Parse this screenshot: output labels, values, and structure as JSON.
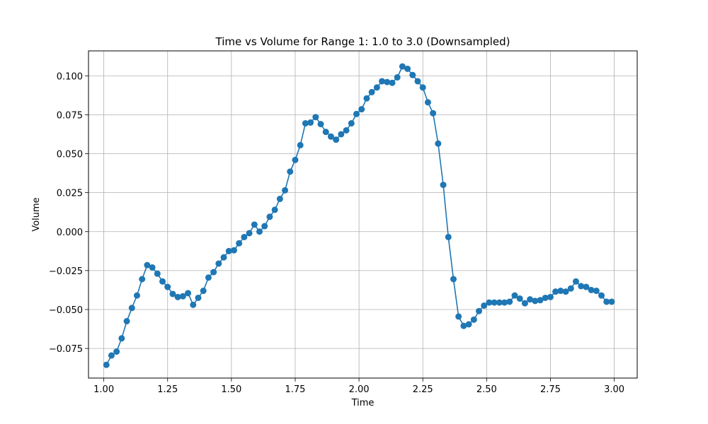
{
  "chart_data": {
    "type": "line",
    "title": "Time vs Volume for Range 1: 1.0 to 3.0 (Downsampled)",
    "xlabel": "Time",
    "ylabel": "Volume",
    "xlim": [
      0.94,
      3.09
    ],
    "ylim": [
      -0.094,
      0.116
    ],
    "x_ticks": [
      1.0,
      1.25,
      1.5,
      1.75,
      2.0,
      2.25,
      2.5,
      2.75,
      3.0
    ],
    "x_tick_labels": [
      "1.00",
      "1.25",
      "1.50",
      "1.75",
      "2.00",
      "2.25",
      "2.50",
      "2.75",
      "3.00"
    ],
    "y_ticks": [
      -0.075,
      -0.05,
      -0.025,
      0.0,
      0.025,
      0.05,
      0.075,
      0.1
    ],
    "y_tick_labels": [
      "−0.075",
      "−0.050",
      "−0.025",
      "0.000",
      "0.025",
      "0.050",
      "0.075",
      "0.100"
    ],
    "grid": true,
    "color": "#1f77b4",
    "marker": "circle",
    "series": [
      {
        "x": [
          1.01,
          1.03,
          1.05,
          1.07,
          1.09,
          1.11,
          1.13,
          1.15,
          1.17,
          1.19,
          1.21,
          1.23,
          1.25,
          1.27,
          1.29,
          1.31,
          1.33,
          1.35,
          1.37,
          1.39,
          1.41,
          1.43,
          1.45,
          1.47,
          1.49,
          1.51,
          1.53,
          1.55,
          1.57,
          1.59,
          1.61,
          1.63,
          1.65,
          1.67,
          1.69,
          1.71,
          1.73,
          1.75,
          1.77,
          1.79,
          1.81,
          1.83,
          1.85,
          1.87,
          1.89,
          1.91,
          1.93,
          1.95,
          1.97,
          1.99,
          2.01,
          2.03,
          2.05,
          2.07,
          2.09,
          2.11,
          2.13,
          2.15,
          2.17,
          2.19,
          2.21,
          2.23,
          2.25,
          2.27,
          2.29,
          2.31,
          2.33,
          2.35,
          2.37,
          2.39,
          2.41,
          2.43,
          2.45,
          2.47,
          2.49,
          2.51,
          2.53,
          2.55,
          2.57,
          2.59,
          2.61,
          2.63,
          2.65,
          2.67,
          2.69,
          2.71,
          2.73,
          2.75,
          2.77,
          2.79,
          2.81,
          2.83,
          2.85,
          2.87,
          2.89,
          2.91,
          2.93,
          2.95,
          2.97,
          2.99
        ],
        "values": [
          -0.0855,
          -0.0795,
          -0.077,
          -0.0685,
          -0.0575,
          -0.049,
          -0.041,
          -0.0305,
          -0.0215,
          -0.023,
          -0.027,
          -0.032,
          -0.0355,
          -0.04,
          -0.042,
          -0.0415,
          -0.0395,
          -0.047,
          -0.0425,
          -0.038,
          -0.0295,
          -0.026,
          -0.0205,
          -0.0165,
          -0.0125,
          -0.012,
          -0.0075,
          -0.0035,
          -0.001,
          0.0045,
          0.0,
          0.0035,
          0.0095,
          0.014,
          0.021,
          0.0265,
          0.0385,
          0.046,
          0.0555,
          0.0695,
          0.07,
          0.0735,
          0.069,
          0.064,
          0.061,
          0.059,
          0.0625,
          0.065,
          0.0695,
          0.0755,
          0.0785,
          0.0855,
          0.0895,
          0.0925,
          0.0965,
          0.096,
          0.0955,
          0.099,
          0.106,
          0.1045,
          0.1005,
          0.0965,
          0.0925,
          0.083,
          0.076,
          0.0565,
          0.03,
          -0.0035,
          -0.0305,
          -0.0545,
          -0.0605,
          -0.0595,
          -0.0565,
          -0.051,
          -0.0475,
          -0.0455,
          -0.0455,
          -0.0455,
          -0.0455,
          -0.045,
          -0.041,
          -0.043,
          -0.046,
          -0.0435,
          -0.0445,
          -0.044,
          -0.0425,
          -0.042,
          -0.0385,
          -0.038,
          -0.0385,
          -0.0365,
          -0.032,
          -0.035,
          -0.0355,
          -0.0375,
          -0.038,
          -0.041,
          -0.045,
          -0.045
        ]
      }
    ]
  }
}
